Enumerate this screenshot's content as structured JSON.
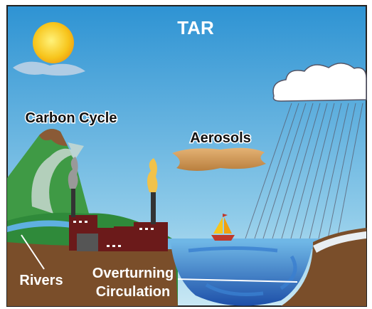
{
  "title": "TAR",
  "labels": {
    "carbon_cycle": "Carbon Cycle",
    "aerosols": "Aerosols",
    "rivers": "Rivers",
    "overturning_circulation": [
      "Overturning",
      "Circulation"
    ]
  }
}
